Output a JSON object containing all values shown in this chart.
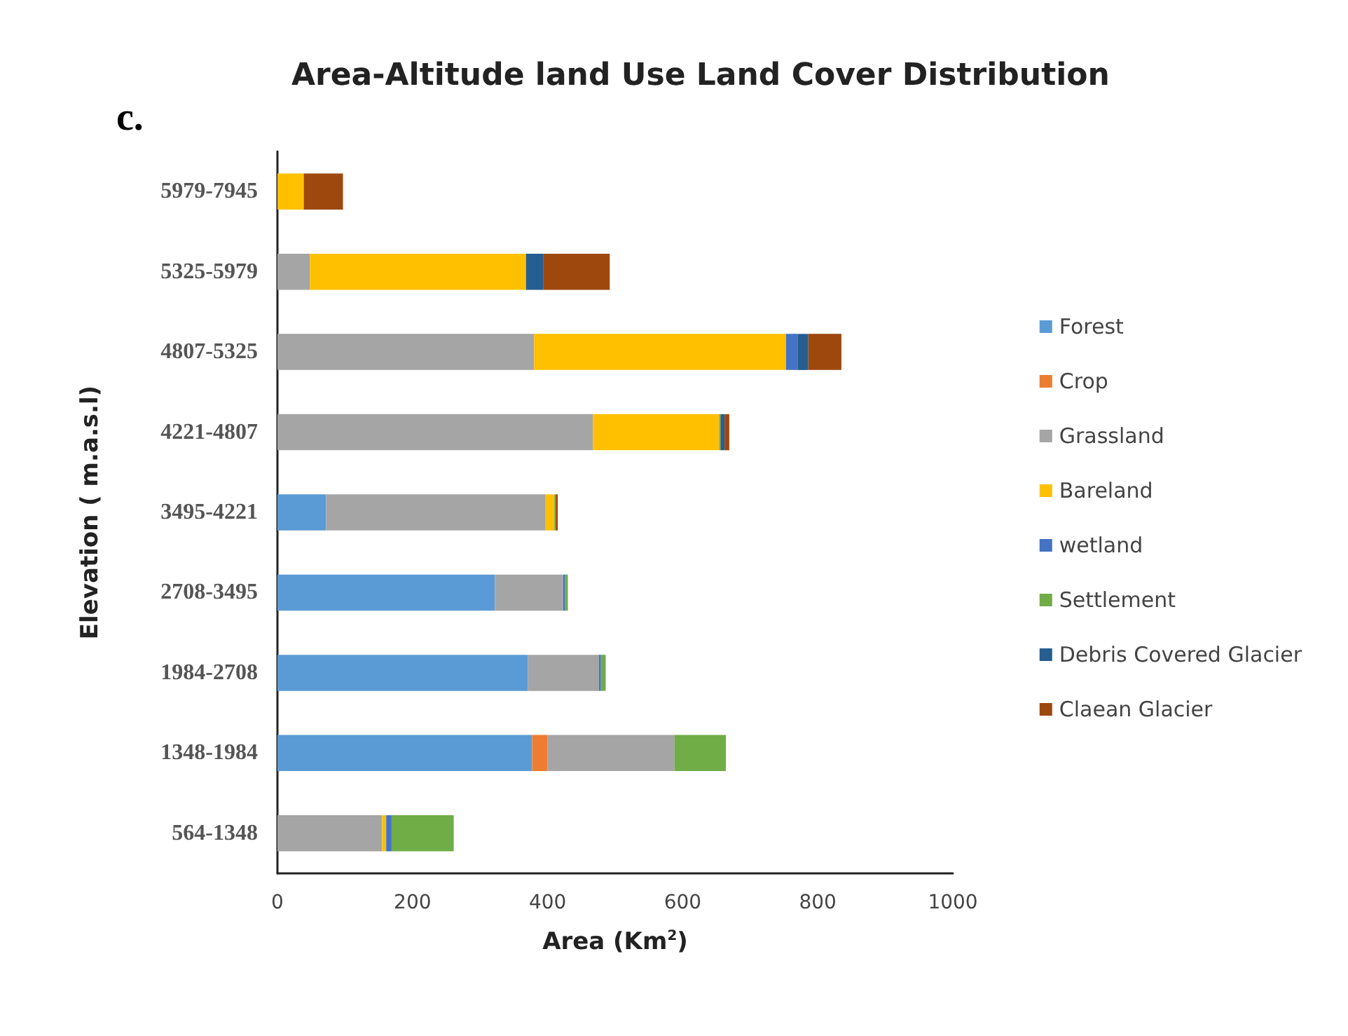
{
  "chart_data": {
    "type": "bar",
    "orientation": "horizontal",
    "stacked": true,
    "title": "Area-Altitude land Use Land Cover Distribution",
    "annotations": [
      "c."
    ],
    "xlabel": "Area (Km$^{2}$)",
    "ylabel": "Elevation ( m.a.s.l)",
    "categories": [
      "5979-7945",
      "5325-5979",
      "4807-5325",
      "4221-4807",
      "3495-4221",
      "2708-3495",
      "1984-2708",
      "1348-1984",
      "564-1348"
    ],
    "xlim": [
      0,
      1000
    ],
    "xticks": [
      0,
      200,
      400,
      600,
      800,
      1000
    ],
    "grid": false,
    "legend": "right",
    "series": [
      {
        "name": "Forest",
        "color": "#5b9bd5",
        "values": [
          null,
          null,
          null,
          null,
          72,
          322,
          371,
          377,
          null
        ]
      },
      {
        "name": "Crop",
        "color": "#ed7d31",
        "values": [
          null,
          null,
          null,
          null,
          null,
          null,
          null,
          23,
          null
        ]
      },
      {
        "name": "Grassland",
        "color": "#a5a5a5",
        "values": [
          null,
          48,
          380,
          467,
          325,
          101,
          105,
          188,
          155
        ]
      },
      {
        "name": "Bareland",
        "color": "#ffc000",
        "values": [
          39,
          320,
          373,
          187,
          13,
          null,
          null,
          null,
          6
        ]
      },
      {
        "name": "wetland",
        "color": "#4472c4",
        "values": [
          null,
          null,
          17,
          null,
          null,
          3,
          3,
          null,
          8
        ]
      },
      {
        "name": "Settlement",
        "color": "#70ad47",
        "values": [
          null,
          null,
          null,
          2,
          2,
          4,
          7,
          76,
          92
        ]
      },
      {
        "name": "Debris Covered Glacier",
        "color": "#255e91",
        "values": [
          null,
          26,
          16,
          6,
          null,
          null,
          null,
          null,
          null
        ]
      },
      {
        "name": "Claean Glacier",
        "color": "#9e480e",
        "values": [
          58,
          98,
          49,
          7,
          3,
          null,
          null,
          null,
          null
        ]
      }
    ]
  }
}
